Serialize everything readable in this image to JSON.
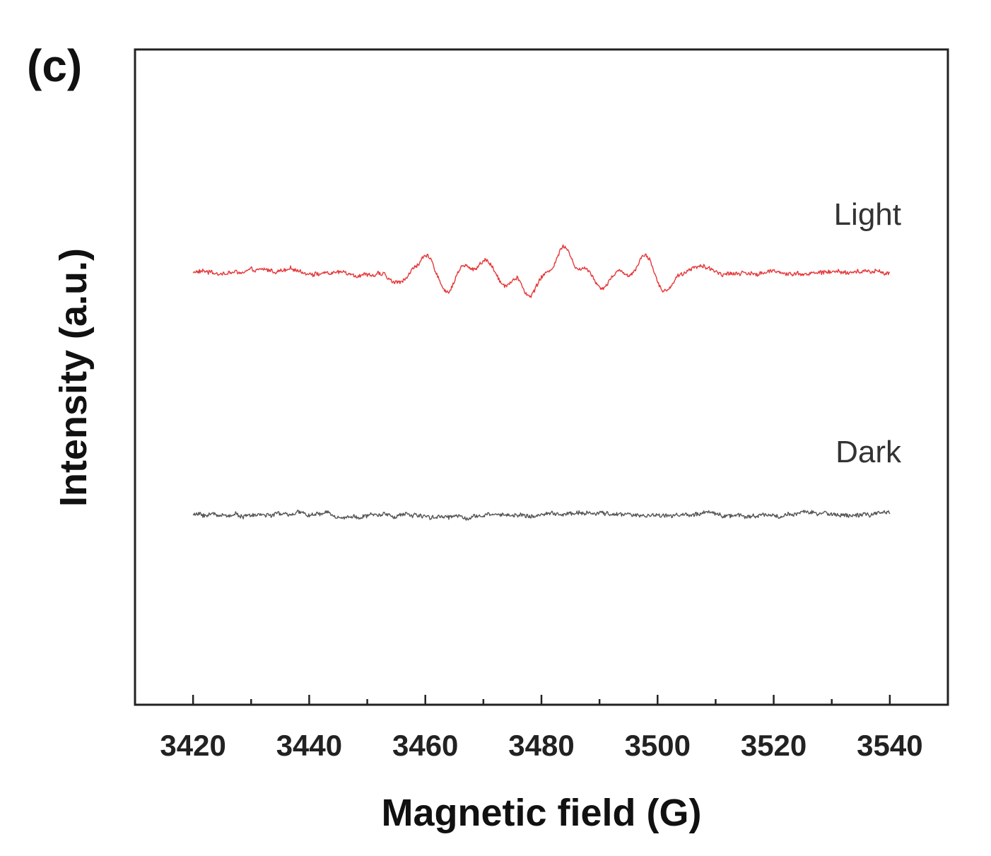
{
  "panel_label": "(c)",
  "colors": {
    "light": "#e5393b",
    "dark": "#555555",
    "axis": "#222222"
  },
  "chart_data": {
    "type": "line",
    "xlabel": "Magnetic field (G)",
    "ylabel": "Intensity (a.u.)",
    "xlim": [
      3410,
      3550
    ],
    "ylim": [
      0,
      100
    ],
    "x_ticks": [
      3420,
      3440,
      3460,
      3480,
      3500,
      3520,
      3540
    ],
    "x_tick_labels": [
      "3420",
      "3440",
      "3460",
      "3480",
      "3500",
      "3520",
      "3540"
    ],
    "grid": false,
    "yticks_shown": false,
    "series": [
      {
        "name": "Light",
        "label": "Light",
        "color": "#e5393b",
        "baseline": 66,
        "x_range": [
          3420,
          3540
        ],
        "features": [
          {
            "x": 3455,
            "dy": -1.8
          },
          {
            "x": 3460,
            "dy": 2.3
          },
          {
            "x": 3464,
            "dy": -3.3
          },
          {
            "x": 3466,
            "dy": 1.8
          },
          {
            "x": 3469,
            "dy": -1.3
          },
          {
            "x": 3470,
            "dy": 2.8
          },
          {
            "x": 3474,
            "dy": -2.5
          },
          {
            "x": 3475,
            "dy": 1.2
          },
          {
            "x": 3478,
            "dy": -4.0
          },
          {
            "x": 3480,
            "dy": 1.2
          },
          {
            "x": 3481,
            "dy": -1.0
          },
          {
            "x": 3484,
            "dy": 4.3
          },
          {
            "x": 3487,
            "dy": -1.3
          },
          {
            "x": 3488,
            "dy": 2.3
          },
          {
            "x": 3490,
            "dy": -2.5
          },
          {
            "x": 3494,
            "dy": 1.2
          },
          {
            "x": 3495,
            "dy": -1.2
          },
          {
            "x": 3498,
            "dy": 3.3
          },
          {
            "x": 3501,
            "dy": -3.0
          },
          {
            "x": 3507,
            "dy": 1.2
          }
        ]
      },
      {
        "name": "Dark",
        "label": "Dark",
        "color": "#555555",
        "baseline": 29,
        "x_range": [
          3420,
          3540
        ],
        "features": []
      }
    ]
  }
}
